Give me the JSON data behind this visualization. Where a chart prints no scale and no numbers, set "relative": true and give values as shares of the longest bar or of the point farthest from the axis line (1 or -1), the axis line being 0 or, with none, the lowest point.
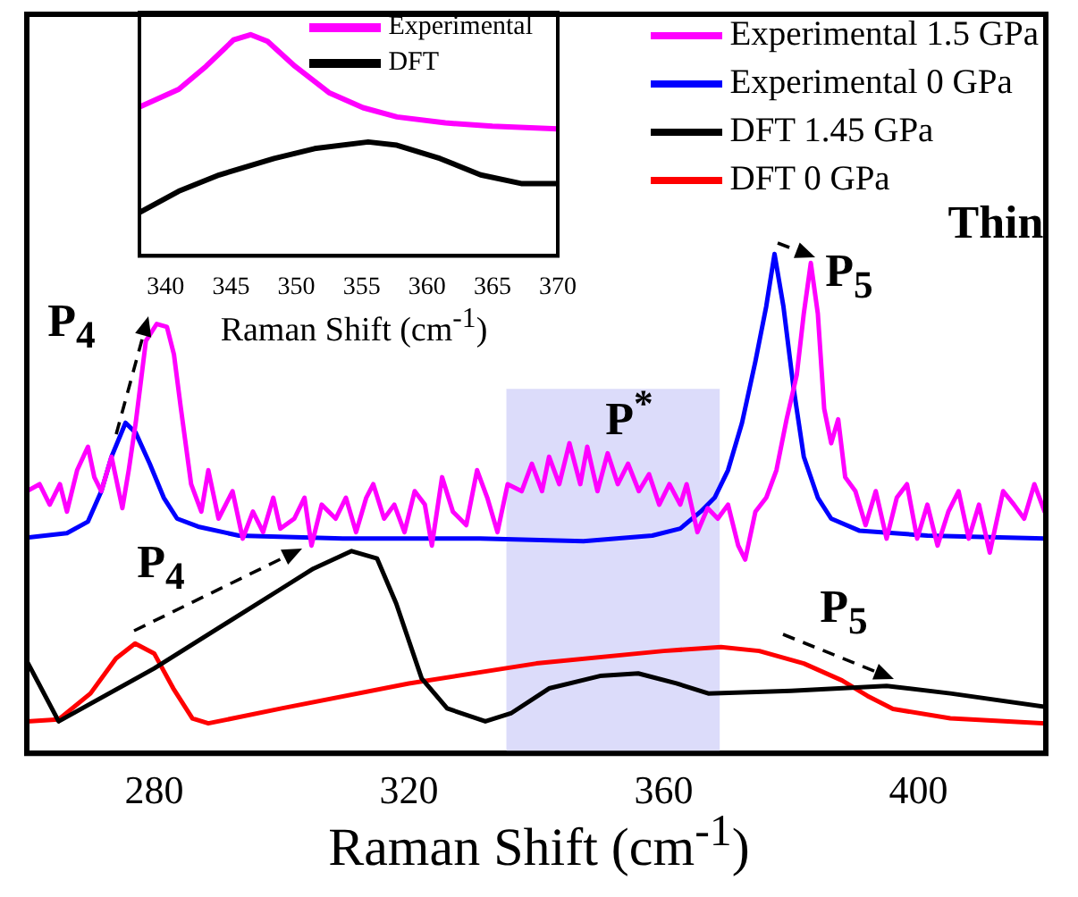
{
  "chart_data": [
    {
      "type": "line",
      "xlabel": "Raman Shift (cm$^{-1}$)",
      "xlim": [
        260,
        420
      ],
      "xticks": [
        280,
        320,
        360,
        400
      ],
      "relative": true,
      "legend": "top right",
      "marker": "none",
      "line_style": "solid",
      "bands": [
        {
          "axis": "x",
          "from": 335.3,
          "to": 368.8,
          "color": "#dcdcfa"
        }
      ],
      "annotations": [
        "P$_{4}$",
        "P$_{5}$",
        "P$^{*}$",
        "Thin",
        "P$_{4}$",
        "P$_{5}$"
      ],
      "series": [
        {
          "name": "Experimental 1.5 GPa",
          "color": "#ff00ff",
          "x": [
            260,
            262.0,
            263.6,
            265.2,
            266.3,
            267.9,
            269.6,
            270.6,
            271.7,
            273.3,
            275.0,
            276.0,
            277.1,
            278.7,
            280.4,
            282.0,
            283.1,
            284.2,
            285.8,
            287.4,
            288.5,
            290.1,
            292.3,
            293.9,
            295.5,
            297.1,
            298.7,
            299.8,
            302.0,
            303.6,
            304.7,
            306.3,
            308.5,
            310.1,
            311.7,
            313.3,
            314.4,
            316.1,
            317.7,
            319.3,
            320.9,
            322.5,
            323.6,
            325.2,
            326.9,
            329.0,
            330.7,
            332.3,
            333.9,
            335.5,
            337.7,
            339.3,
            340.9,
            342.0,
            343.6,
            345.2,
            346.9,
            348.0,
            349.6,
            351.2,
            352.8,
            354.4,
            356.1,
            357.7,
            359.3,
            360.9,
            362.6,
            363.6,
            365.3,
            366.9,
            368.5,
            370.1,
            371.7,
            372.8,
            374.4,
            376.1,
            377.7,
            379.3,
            380.9,
            382.0,
            383.1,
            384.2,
            385.2,
            386.3,
            387.4,
            388.5,
            390.1,
            391.7,
            393.3,
            395.0,
            396.6,
            398.2,
            399.8,
            401.4,
            403.0,
            404.7,
            406.3,
            407.9,
            409.5,
            411.2,
            413.3,
            415.0,
            416.6,
            418.2,
            419.8
          ],
          "values": [
            0.525,
            0.539,
            0.498,
            0.539,
            0.484,
            0.567,
            0.614,
            0.553,
            0.525,
            0.594,
            0.491,
            0.567,
            0.662,
            0.826,
            0.86,
            0.854,
            0.799,
            0.69,
            0.539,
            0.484,
            0.567,
            0.47,
            0.525,
            0.43,
            0.484,
            0.443,
            0.512,
            0.45,
            0.47,
            0.512,
            0.416,
            0.498,
            0.47,
            0.512,
            0.443,
            0.512,
            0.539,
            0.47,
            0.498,
            0.443,
            0.525,
            0.498,
            0.416,
            0.553,
            0.484,
            0.457,
            0.567,
            0.512,
            0.443,
            0.539,
            0.525,
            0.58,
            0.525,
            0.594,
            0.539,
            0.621,
            0.539,
            0.614,
            0.525,
            0.601,
            0.539,
            0.58,
            0.525,
            0.559,
            0.498,
            0.539,
            0.498,
            0.539,
            0.443,
            0.491,
            0.47,
            0.498,
            0.416,
            0.388,
            0.484,
            0.512,
            0.567,
            0.669,
            0.758,
            0.881,
            0.982,
            0.881,
            0.69,
            0.621,
            0.669,
            0.553,
            0.525,
            0.457,
            0.525,
            0.43,
            0.512,
            0.539,
            0.43,
            0.498,
            0.416,
            0.484,
            0.525,
            0.43,
            0.498,
            0.402,
            0.525,
            0.498,
            0.47,
            0.539,
            0.484
          ]
        },
        {
          "name": "Experimental 0 GPa",
          "color": "#0000ff",
          "x": [
            260,
            266.3,
            269.6,
            271.7,
            273.3,
            275.5,
            277.1,
            279.3,
            281.5,
            283.6,
            286.9,
            293.3,
            309.6,
            331.2,
            347.4,
            358.2,
            362.6,
            365.8,
            368.0,
            370.1,
            372.3,
            374.4,
            376.1,
            377.4,
            378.8,
            380.4,
            382.0,
            384.2,
            386.3,
            390.7,
            401.4,
            419.8
          ],
          "values": [
            0.432,
            0.441,
            0.464,
            0.525,
            0.594,
            0.662,
            0.642,
            0.58,
            0.512,
            0.47,
            0.454,
            0.436,
            0.43,
            0.43,
            0.425,
            0.436,
            0.45,
            0.484,
            0.512,
            0.567,
            0.662,
            0.785,
            0.895,
            1.0,
            0.895,
            0.731,
            0.594,
            0.512,
            0.47,
            0.446,
            0.436,
            0.43
          ]
        },
        {
          "name": "DFT 1.45 GPa",
          "color": "#000000",
          "x": [
            260,
            265,
            280,
            290,
            300,
            305,
            311,
            315,
            318,
            322,
            326,
            332,
            336,
            342,
            350,
            356,
            362,
            367,
            380,
            395,
            405,
            420
          ],
          "values": [
            0.185,
            0.064,
            0.17,
            0.25,
            0.33,
            0.37,
            0.405,
            0.39,
            0.3,
            0.15,
            0.09,
            0.064,
            0.08,
            0.13,
            0.155,
            0.16,
            0.14,
            0.12,
            0.125,
            0.135,
            0.12,
            0.093
          ]
        },
        {
          "name": "DFT 0 GPa",
          "color": "#ff0000",
          "x": [
            260,
            265,
            270,
            274,
            277,
            280,
            283,
            286,
            288.5,
            300,
            320,
            340,
            360,
            369,
            375,
            382,
            388,
            392,
            396,
            405,
            420
          ],
          "values": [
            0.064,
            0.068,
            0.12,
            0.19,
            0.22,
            0.2,
            0.13,
            0.07,
            0.06,
            0.09,
            0.14,
            0.18,
            0.205,
            0.213,
            0.205,
            0.18,
            0.146,
            0.115,
            0.089,
            0.07,
            0.06
          ]
        }
      ]
    },
    {
      "type": "line",
      "xlabel": "Raman Shift (cm$^{-1}$)",
      "xlim": [
        338,
        370
      ],
      "xticks": [
        340,
        345,
        350,
        355,
        360,
        365,
        370
      ],
      "relative": true,
      "legend": "top right",
      "marker": "none",
      "line_style": "solid",
      "series": [
        {
          "name": "Experimental",
          "color": "#ff00ff",
          "x": [
            338.0,
            341.0,
            343.1,
            345.2,
            346.5,
            347.8,
            349.9,
            352.5,
            355.1,
            357.7,
            361.4,
            365.0,
            370.0
          ],
          "values": [
            0.673,
            0.753,
            0.857,
            0.976,
            1.0,
            0.97,
            0.857,
            0.738,
            0.67,
            0.628,
            0.601,
            0.586,
            0.574
          ]
        },
        {
          "name": "DFT",
          "color": "#000000",
          "x": [
            338.0,
            341.0,
            344.1,
            348.3,
            351.4,
            355.5,
            357.7,
            361.0,
            364.1,
            367.2,
            370.0
          ],
          "values": [
            0.196,
            0.292,
            0.366,
            0.44,
            0.485,
            0.515,
            0.5,
            0.44,
            0.366,
            0.327,
            0.327
          ]
        }
      ]
    }
  ]
}
